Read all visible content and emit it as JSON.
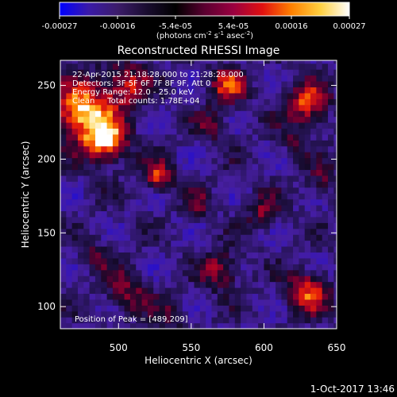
{
  "colorbar": {
    "ticks": [
      "-0.00027",
      "-0.00016",
      "-5.4e-05",
      "5.4e-05",
      "0.00016",
      "0.00027"
    ],
    "unit_label": "(photons cm",
    "unit_exp1": "-2",
    "unit_mid": " s",
    "unit_exp2": "-1",
    "unit_end": " asec",
    "unit_exp3": "-2",
    "unit_close": ")",
    "colors": [
      "#0000ff",
      "#3a1aa8",
      "#3c1c6a",
      "#1a0d30",
      "#000000",
      "#5a0030",
      "#9a0040",
      "#e01010",
      "#ff8000",
      "#ffd040",
      "#ffffff"
    ]
  },
  "chart_data": {
    "type": "heatmap",
    "title": "Reconstructed RHESSI Image",
    "xlabel": "Heliocentric X (arcsec)",
    "ylabel": "Heliocentric Y (arcsec)",
    "x_range": [
      460,
      650
    ],
    "y_range": [
      85,
      267
    ],
    "x_ticks": [
      500,
      550,
      600,
      650
    ],
    "y_ticks": [
      100,
      150,
      200,
      250
    ],
    "annotations": [
      "22-Apr-2015 21:18:28.000 to 21:28:28.000",
      "Detectors: 3F 5F 6F 7F 8F 9F, Att 0",
      "Energy Range: 12.0 - 25.0 keV",
      "Clean     Total counts: 1.78E+04"
    ],
    "peak_label": "Position of Peak = [489,209]",
    "peak": [
      489,
      209
    ],
    "sources": [
      {
        "x": 475,
        "y": 232,
        "intensity": 1.0,
        "width": 14
      },
      {
        "x": 492,
        "y": 212,
        "intensity": 0.95,
        "width": 10
      },
      {
        "x": 505,
        "y": 250,
        "intensity": 0.6,
        "width": 11
      },
      {
        "x": 527,
        "y": 189,
        "intensity": 0.7,
        "width": 7
      },
      {
        "x": 575,
        "y": 250,
        "intensity": 0.65,
        "width": 9
      },
      {
        "x": 630,
        "y": 238,
        "intensity": 0.75,
        "width": 10
      },
      {
        "x": 565,
        "y": 223,
        "intensity": 0.35,
        "width": 8
      },
      {
        "x": 505,
        "y": 110,
        "intensity": 0.45,
        "width": 10
      },
      {
        "x": 570,
        "y": 125,
        "intensity": 0.55,
        "width": 9
      },
      {
        "x": 630,
        "y": 110,
        "intensity": 0.7,
        "width": 10
      },
      {
        "x": 600,
        "y": 165,
        "intensity": 0.45,
        "width": 8
      },
      {
        "x": 555,
        "y": 170,
        "intensity": 0.3,
        "width": 7
      },
      {
        "x": 535,
        "y": 95,
        "intensity": 0.35,
        "width": 8
      },
      {
        "x": 640,
        "y": 185,
        "intensity": 0.35,
        "width": 8
      },
      {
        "x": 620,
        "y": 212,
        "intensity": 0.3,
        "width": 7
      },
      {
        "x": 485,
        "y": 135,
        "intensity": 0.3,
        "width": 8
      }
    ]
  },
  "footer": {
    "timestamp": "1-Oct-2017 13:46"
  }
}
